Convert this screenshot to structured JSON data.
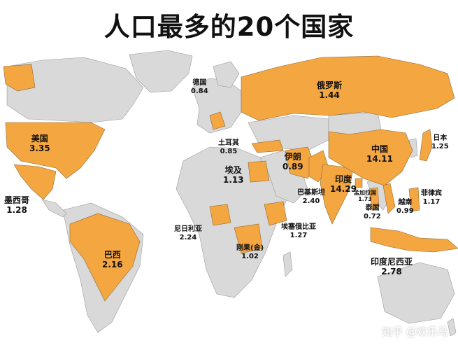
{
  "title": "人口最多的20个国家",
  "colors": {
    "highlight": "#f4a640",
    "land": "#d9d9d9",
    "water": "#ffffff",
    "border": "#9a9a9a",
    "text": "#111111"
  },
  "countries": [
    {
      "name": "俄罗斯",
      "value": "1.44"
    },
    {
      "name": "德国",
      "value": "0.84"
    },
    {
      "name": "美国",
      "value": "3.35"
    },
    {
      "name": "土耳其",
      "value": "0.85"
    },
    {
      "name": "日本",
      "value": "1.25"
    },
    {
      "name": "伊朗",
      "value": "0.89"
    },
    {
      "name": "中国",
      "value": "14.11"
    },
    {
      "name": "埃及",
      "value": "1.13"
    },
    {
      "name": "印度",
      "value": "14.29"
    },
    {
      "name": "孟加拉国",
      "value": "1.73"
    },
    {
      "name": "菲律宾",
      "value": "1.17"
    },
    {
      "name": "巴基斯坦",
      "value": "2.40"
    },
    {
      "name": "越南",
      "value": "0.99"
    },
    {
      "name": "墨西哥",
      "value": "1.28"
    },
    {
      "name": "泰国",
      "value": "0.72"
    },
    {
      "name": "尼日利亚",
      "value": "2.24"
    },
    {
      "name": "埃塞俄比亚",
      "value": "1.27"
    },
    {
      "name": "刚果(金)",
      "value": "1.02"
    },
    {
      "name": "巴西",
      "value": "2.16"
    },
    {
      "name": "印度尼西亚",
      "value": "2.78"
    }
  ],
  "watermark": "知乎 @欢乐马"
}
